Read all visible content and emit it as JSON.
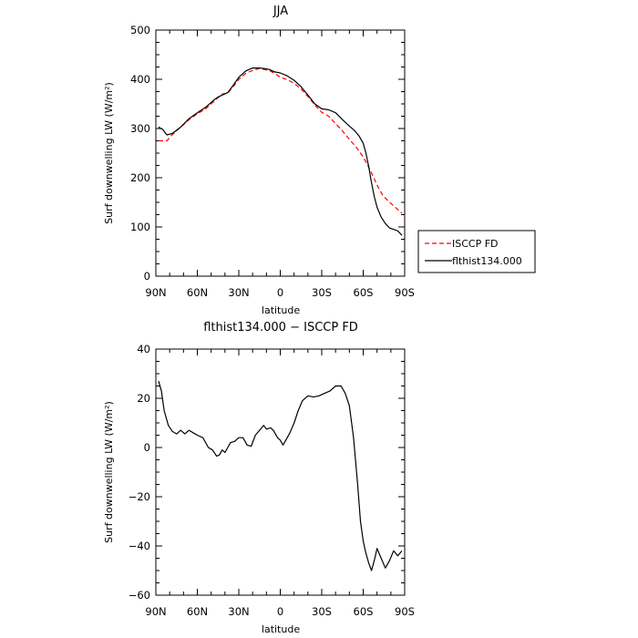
{
  "chart_data": [
    {
      "type": "line",
      "title": "JJA",
      "xlabel": "latitude",
      "ylabel": "Surf downwelling LW (W/m²)",
      "ylim": [
        0,
        500
      ],
      "xlim": [
        90,
        -90
      ],
      "x_ticks": [
        90,
        60,
        30,
        0,
        -30,
        -60,
        -90
      ],
      "x_tick_labels": [
        "90N",
        "60N",
        "30N",
        "0",
        "30S",
        "60S",
        "90S"
      ],
      "y_ticks": [
        0,
        100,
        200,
        300,
        400,
        500
      ],
      "y_tick_labels": [
        "0",
        "100",
        "200",
        "300",
        "400",
        "500"
      ],
      "legend_position": "right",
      "series": [
        {
          "name": "ISCCP FD",
          "color": "#ff0000",
          "dash": "dashed",
          "x": [
            88,
            82,
            78,
            72,
            66,
            60,
            54,
            48,
            45,
            42,
            38,
            34,
            30,
            25,
            20,
            15,
            12,
            8,
            4,
            0,
            -5,
            -10,
            -15,
            -20,
            -25,
            -30,
            -35,
            -40,
            -45,
            -50,
            -55,
            -60,
            -63,
            -66,
            -70,
            -74,
            -78,
            -82,
            -86,
            -88
          ],
          "values": [
            275,
            275,
            288,
            303,
            318,
            330,
            340,
            355,
            363,
            370,
            372,
            385,
            400,
            412,
            418,
            422,
            420,
            418,
            412,
            404,
            399,
            392,
            380,
            365,
            348,
            333,
            325,
            310,
            295,
            278,
            262,
            242,
            227,
            210,
            185,
            165,
            153,
            143,
            133,
            128
          ]
        },
        {
          "name": "flthist134.000",
          "color": "#000000",
          "dash": "solid",
          "x": [
            88,
            85,
            82,
            78,
            72,
            66,
            60,
            54,
            48,
            45,
            42,
            38,
            34,
            30,
            25,
            20,
            15,
            12,
            8,
            4,
            0,
            -5,
            -10,
            -15,
            -20,
            -25,
            -30,
            -35,
            -40,
            -45,
            -50,
            -54,
            -57,
            -60,
            -62,
            -64,
            -66,
            -68,
            -70,
            -73,
            -76,
            -79,
            -82,
            -85,
            -88
          ],
          "values": [
            303,
            298,
            287,
            290,
            303,
            320,
            332,
            343,
            358,
            364,
            368,
            373,
            388,
            404,
            417,
            423,
            423,
            422,
            420,
            415,
            413,
            407,
            398,
            385,
            368,
            350,
            340,
            338,
            332,
            318,
            305,
            295,
            285,
            270,
            250,
            222,
            190,
            162,
            140,
            120,
            107,
            98,
            95,
            92,
            83
          ]
        }
      ]
    },
    {
      "type": "line",
      "title": "flthist134.000 − ISCCP FD",
      "xlabel": "latitude",
      "ylabel": "Surf downwelling LW (W/m²)",
      "ylim": [
        -60,
        40
      ],
      "xlim": [
        90,
        -90
      ],
      "x_ticks": [
        90,
        60,
        30,
        0,
        -30,
        -60,
        -90
      ],
      "x_tick_labels": [
        "90N",
        "60N",
        "30N",
        "0",
        "30S",
        "60S",
        "90S"
      ],
      "y_ticks": [
        -60,
        -40,
        -20,
        0,
        20,
        40
      ],
      "y_tick_labels": [
        "−60",
        "−40",
        "−20",
        "0",
        "20",
        "40"
      ],
      "series": [
        {
          "color": "#000000",
          "dash": "solid",
          "x": [
            88,
            86,
            84,
            81,
            78,
            75,
            72,
            69,
            66,
            63,
            60,
            56,
            52,
            49,
            46,
            44,
            42,
            40,
            38,
            36,
            33,
            30,
            27,
            24,
            21,
            18,
            15,
            12,
            10,
            7,
            5,
            2,
            0,
            -2,
            -4,
            -7,
            -10,
            -13,
            -16,
            -20,
            -24,
            -28,
            -32,
            -36,
            -40,
            -44,
            -47,
            -50,
            -53,
            -56,
            -58,
            -60,
            -62,
            -64,
            -66,
            -68,
            -70,
            -73,
            -76,
            -79,
            -82,
            -85,
            -88
          ],
          "values": [
            27,
            23,
            15,
            9,
            6.5,
            5.5,
            7,
            5.5,
            7,
            6,
            5,
            4,
            0,
            -1,
            -3.5,
            -3,
            -1,
            -2,
            0,
            2,
            2.5,
            4,
            4,
            1,
            0.5,
            5,
            7,
            9,
            7.5,
            8,
            7,
            4,
            3,
            1,
            3,
            6,
            10,
            15,
            19,
            21,
            20.5,
            21,
            22,
            23,
            25,
            25,
            22,
            17,
            4,
            -15,
            -30,
            -38,
            -43,
            -47,
            -50,
            -46,
            -41,
            -45,
            -49,
            -46,
            -42,
            -44,
            -42
          ]
        }
      ]
    }
  ]
}
